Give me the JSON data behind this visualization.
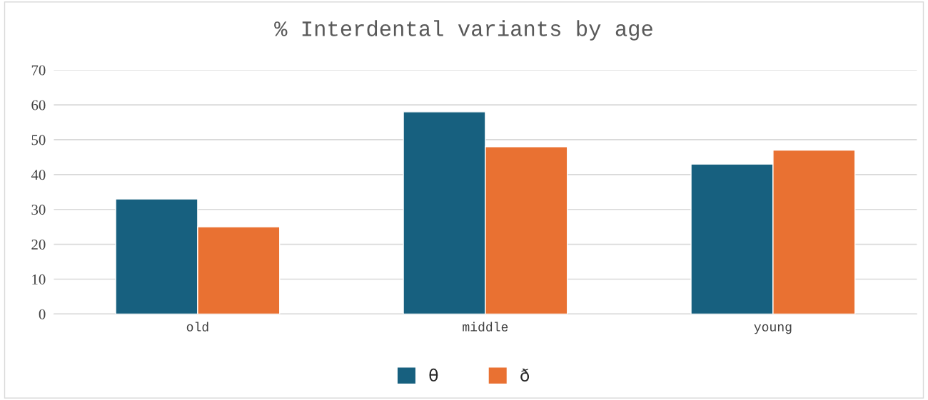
{
  "chart_data": {
    "type": "bar",
    "title": "% Interdental variants by age",
    "categories": [
      "old",
      "middle",
      "young"
    ],
    "series": [
      {
        "name": "θ",
        "color": "#17607f",
        "values": [
          33,
          58,
          43
        ]
      },
      {
        "name": "ð",
        "color": "#e97132",
        "values": [
          25,
          48,
          47
        ]
      }
    ],
    "ylim": [
      0,
      70
    ],
    "yticks": [
      0,
      10,
      20,
      30,
      40,
      50,
      60,
      70
    ],
    "grid": "y",
    "legend": "bottom"
  }
}
